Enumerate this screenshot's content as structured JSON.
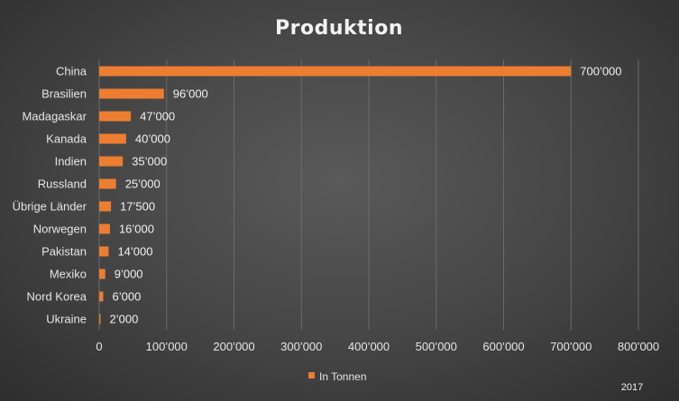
{
  "chart_data": {
    "type": "bar",
    "orientation": "horizontal",
    "title": "Produktion",
    "categories": [
      "China",
      "Brasilien",
      "Madagaskar",
      "Kanada",
      "Indien",
      "Russland",
      "Übrige Länder",
      "Norwegen",
      "Pakistan",
      "Mexiko",
      "Nord Korea",
      "Ukraine"
    ],
    "series": [
      {
        "name": "In Tonnen",
        "values": [
          700000,
          96000,
          47000,
          40000,
          35000,
          25000,
          17500,
          16000,
          14000,
          9000,
          6000,
          2000
        ],
        "data_labels": [
          "700’000",
          "96’000",
          "47’000",
          "40’000",
          "35’000",
          "25’000",
          "17’500",
          "16’000",
          "14’000",
          "9’000",
          "6’000",
          "2’000"
        ]
      }
    ],
    "xlim": [
      0,
      800000
    ],
    "x_ticks": [
      0,
      100000,
      200000,
      300000,
      400000,
      500000,
      600000,
      700000,
      800000
    ],
    "x_tick_labels": [
      "0",
      "100’000",
      "200’000",
      "300’000",
      "400’000",
      "500’000",
      "600’000",
      "700’000",
      "800’000"
    ],
    "grid": "vertical",
    "legend_position": "bottom",
    "annotation": "2017",
    "bar_color": "#ed7d31"
  }
}
